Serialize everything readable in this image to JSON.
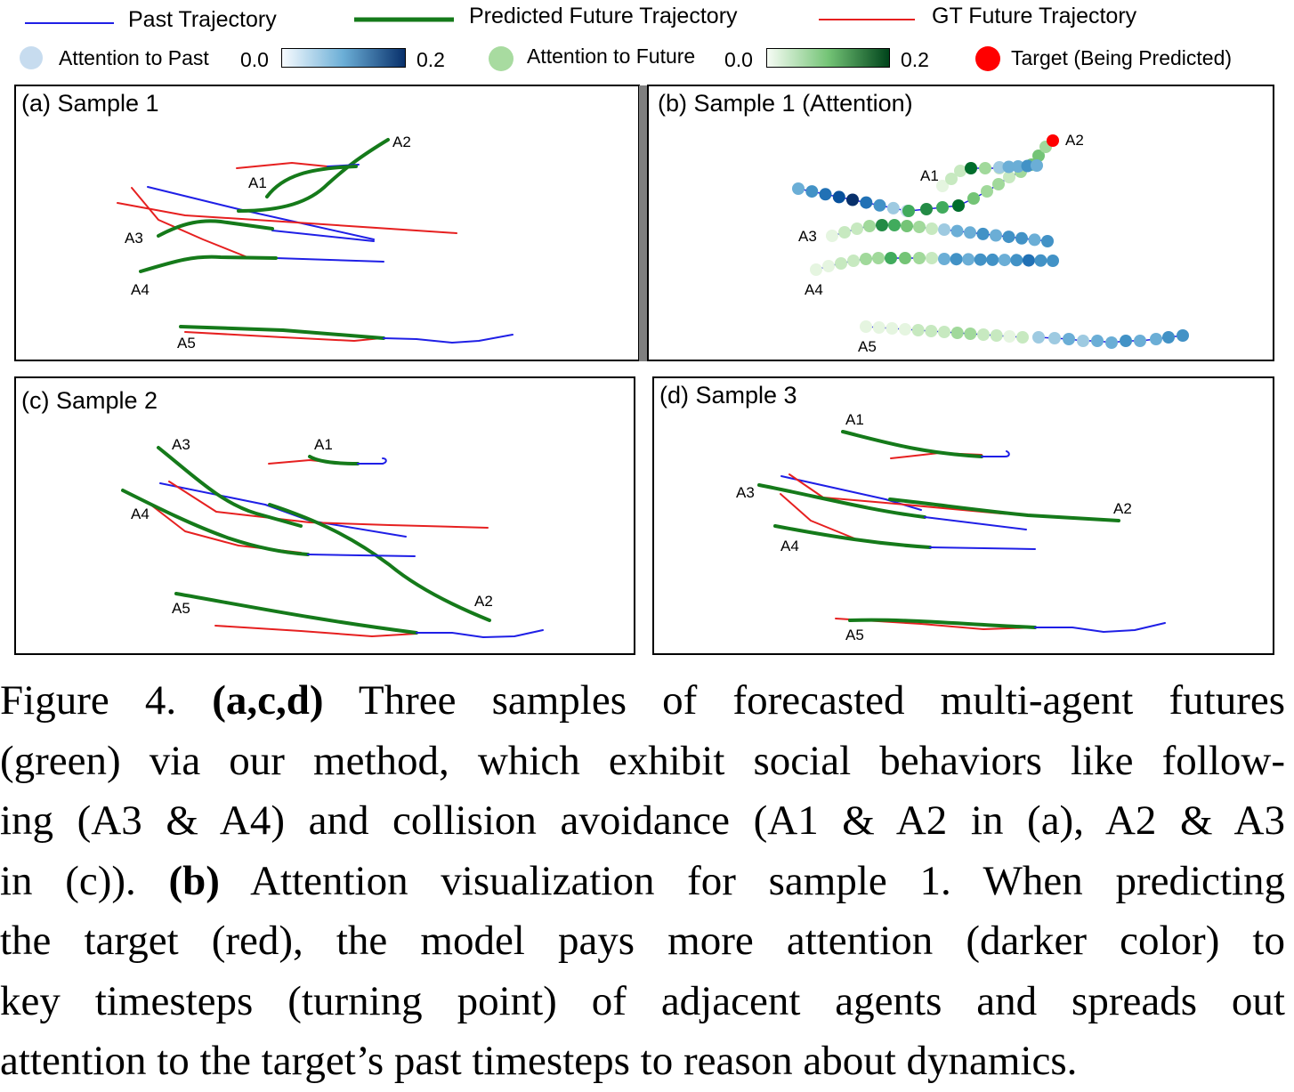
{
  "legend": {
    "past_trajectory": "Past Trajectory",
    "predicted_future": "Predicted Future Trajectory",
    "gt_future": "GT Future Trajectory",
    "attention_past": "Attention to Past",
    "attention_past_min": "0.0",
    "attention_past_max": "0.2",
    "attention_future": "Attention to Future",
    "attention_future_min": "0.0",
    "attention_future_max": "0.2",
    "target": "Target (Being Predicted)"
  },
  "colors": {
    "past": "#1f1fe6",
    "predicted": "#157a1a",
    "gt": "#e62020",
    "target": "#ff0000"
  },
  "panels": [
    {
      "title": "(a) Sample 1",
      "agents": [
        "A2",
        "A1",
        "A3",
        "A4",
        "A5"
      ]
    },
    {
      "title": "(b) Sample 1 (Attention)",
      "agents": [
        "A2",
        "A1",
        "A3",
        "A4",
        "A5"
      ]
    },
    {
      "title": "(c) Sample 2",
      "agents": [
        "A3",
        "A1",
        "A4",
        "A2",
        "A5"
      ]
    },
    {
      "title": "(d) Sample 3",
      "agents": [
        "A1",
        "A3",
        "A2",
        "A4",
        "A5"
      ]
    }
  ],
  "caption": {
    "line1_a": "Figure 4. ",
    "line1_b": "(a,c,d)",
    "line1_c": " Three samples of forecasted multi-agent futures",
    "line2": "(green) via our method, which exhibit social behaviors like follow-",
    "line3": "ing (A3 & A4) and collision avoidance (A1 & A2 in (a), A2 & A3",
    "line4_a": "in (c)). ",
    "line4_b": "(b)",
    "line4_c": " Attention visualization for sample 1. When predicting",
    "line5": "the target (red), the model pays more attention (darker color) to",
    "line6": "key timesteps (turning point) of adjacent agents and spreads out",
    "line7": "attention to the target’s past timesteps to reason about dynamics."
  }
}
